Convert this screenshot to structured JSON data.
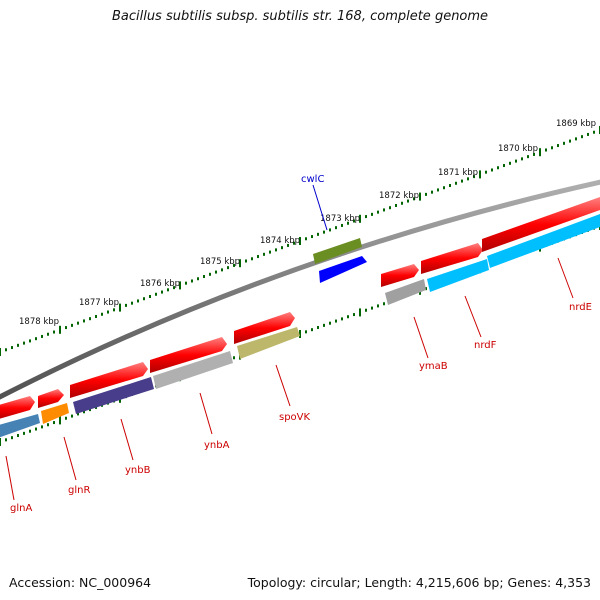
{
  "title": "Bacillus subtilis subsp. subtilis str. 168, complete genome",
  "footer": {
    "accession": "Accession: NC_000964",
    "summary": "Topology: circular; Length: 4,215,606 bp; Genes: 4,353"
  },
  "scale_labels": [
    "1869 kbp",
    "1870 kbp",
    "1871 kbp",
    "1872 kbp",
    "1873 kbp",
    "1874 kbp",
    "1875 kbp",
    "1876 kbp",
    "1877 kbp",
    "1878 kbp"
  ],
  "genes": [
    {
      "name": "glnA",
      "color": "#4682b4",
      "label_color": "#cc0000"
    },
    {
      "name": "glnR",
      "color": "#ff8c00",
      "label_color": "#cc0000"
    },
    {
      "name": "ynbB",
      "color": "#483d8b",
      "label_color": "#cc0000"
    },
    {
      "name": "ynbA",
      "color": "#b0b0b0",
      "label_color": "#cc0000"
    },
    {
      "name": "spoVK",
      "color": "#bdb76b",
      "label_color": "#cc0000"
    },
    {
      "name": "cwlC",
      "color": "#6b8e23",
      "label_color": "#0000cc"
    },
    {
      "name": "ymaB",
      "color": "#a0a0a0",
      "label_color": "#cc0000"
    },
    {
      "name": "nrdF",
      "color": "#00bfff",
      "label_color": "#cc0000"
    },
    {
      "name": "nrdE",
      "color": "#00bfff",
      "label_color": "#cc0000"
    }
  ],
  "colors": {
    "cds": "#ff0000",
    "backbone": "#808080",
    "tick": "#006400",
    "blue_feature": "#0000ff"
  }
}
